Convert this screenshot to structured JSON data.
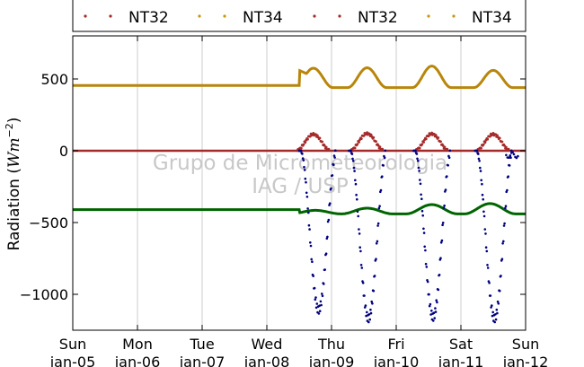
{
  "chart_data": {
    "type": "scatter",
    "ylabel": "Radiation (W m⁻²)",
    "ylabel_plain": "Radiation (",
    "ylabel_math": "Wm",
    "ylabel_sup": "−2",
    "ylabel_close": ")",
    "ylim": [
      -1250,
      800
    ],
    "xlim": [
      0,
      7
    ],
    "grid": "vertical",
    "legend_placement": "top",
    "watermark": [
      "Grupo de Micrometeorologia",
      "IAG / USP"
    ],
    "x_ticks": [
      {
        "x": 0,
        "day": "Sun",
        "date": "Jan-05"
      },
      {
        "x": 1,
        "day": "Mon",
        "date": "Jan-06"
      },
      {
        "x": 2,
        "day": "Tue",
        "date": "Jan-07"
      },
      {
        "x": 3,
        "day": "Wed",
        "date": "Jan-08"
      },
      {
        "x": 4,
        "day": "Thu",
        "date": "Jan-09"
      },
      {
        "x": 5,
        "day": "Fri",
        "date": "Jan-10"
      },
      {
        "x": 6,
        "day": "Sat",
        "date": "Jan-11"
      },
      {
        "x": 7,
        "day": "Sun",
        "date": "Jan-12"
      }
    ],
    "y_ticks": [
      500,
      0,
      -500,
      -1000
    ],
    "y_tick_labels": [
      "500",
      "0",
      "−500",
      "−1000"
    ],
    "legend": [
      {
        "name": "NT32",
        "color": "#a52a2a"
      },
      {
        "name": "NT34",
        "color": "#c8960f"
      },
      {
        "name": "NT32",
        "color": "#a52a2a"
      },
      {
        "name": "NT34",
        "color": "#c8960f"
      }
    ],
    "series": [
      {
        "color": "#b8860b",
        "base": 455,
        "day_amp": 130,
        "day_peaks": [
          580,
          580,
          590,
          560
        ],
        "start": 0,
        "data_start": 0
      },
      {
        "color": "#a52a2a",
        "base": 0,
        "day_peaks": [
          115,
          120,
          118,
          115
        ],
        "start": 0
      },
      {
        "color": "#000000",
        "base": 0,
        "start": 0
      },
      {
        "color": "#006400",
        "base": -410,
        "day_dips": [
          -415,
          -400,
          -375,
          -370
        ],
        "start": 0
      },
      {
        "color": "#000080",
        "base": -1100,
        "day_mins": [
          -1110,
          -1170,
          -1160,
          -1170
        ],
        "start": 3.7
      }
    ]
  },
  "colors": {
    "gold": "#b8860b",
    "red": "#a52a2a",
    "black": "#000000",
    "green": "#006400",
    "navy": "#000080",
    "grid": "#cccccc",
    "watermark": "#c8c8c8"
  }
}
